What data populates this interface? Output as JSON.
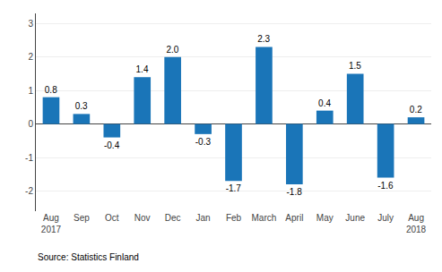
{
  "chart_data": {
    "type": "bar",
    "categories": [
      "Aug\n2017",
      "Sep",
      "Oct",
      "Nov",
      "Dec",
      "Jan",
      "Feb",
      "March",
      "April",
      "May",
      "June",
      "July",
      "Aug\n2018"
    ],
    "values": [
      0.8,
      0.3,
      -0.4,
      1.4,
      2.0,
      -0.3,
      -1.7,
      2.3,
      -1.8,
      0.4,
      1.5,
      -1.6,
      0.2
    ],
    "value_labels": [
      "0.8",
      "0.3",
      "-0.4",
      "1.4",
      "2.0",
      "-0.3",
      "-1.7",
      "2.3",
      "-1.8",
      "0.4",
      "1.5",
      "-1.6",
      "0.2"
    ],
    "data_labels": true,
    "color": "#1a75b8",
    "ylim": [
      -2.6,
      3.3
    ],
    "yticks": [
      -2,
      -1,
      0,
      1,
      2,
      3
    ],
    "grid": true,
    "annotations": [
      "Source: Statistics Finland"
    ]
  }
}
